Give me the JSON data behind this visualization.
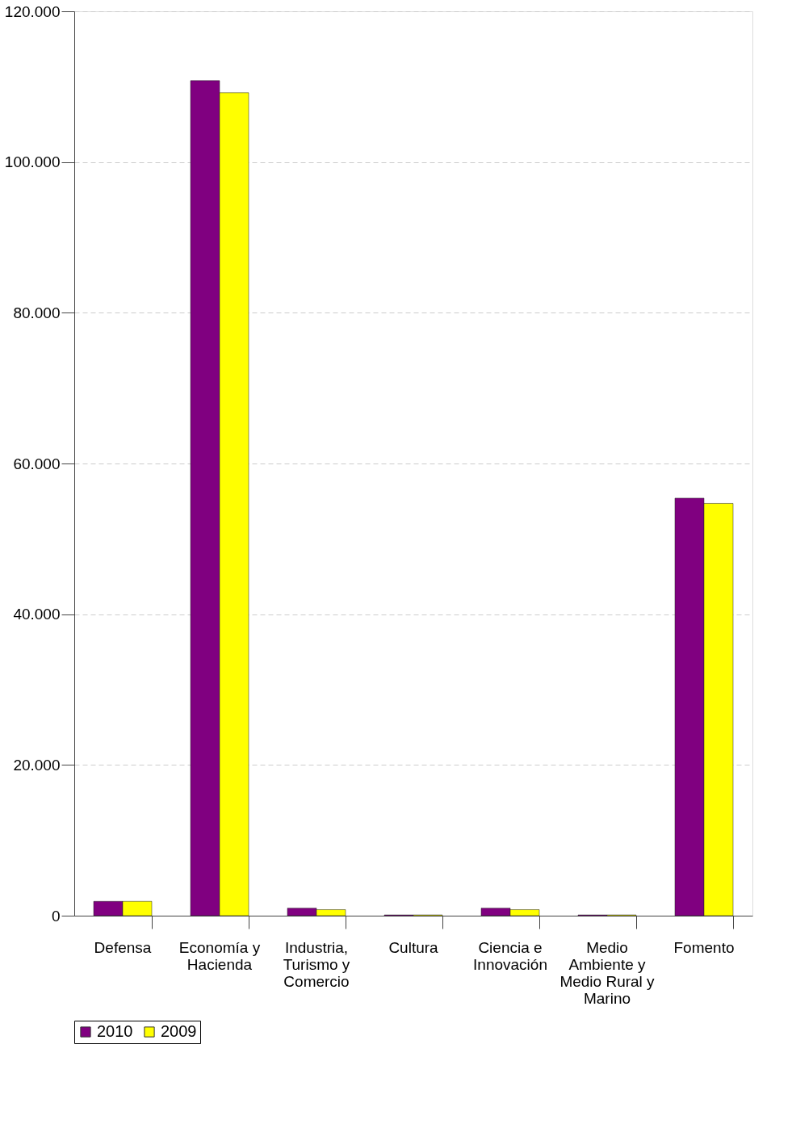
{
  "chart_data": {
    "type": "bar",
    "categories": [
      "Defensa",
      "Economía y Hacienda",
      "Industria, Turismo y Comercio",
      "Cultura",
      "Ciencia e Innovación",
      "Medio Ambiente y Medio Rural y Marino",
      "Fomento"
    ],
    "series": [
      {
        "name": "2010",
        "color": "#800080",
        "values": [
          1900,
          110800,
          1000,
          100,
          1000,
          100,
          55400
        ]
      },
      {
        "name": "2009",
        "color": "#ffff00",
        "values": [
          1900,
          109200,
          800,
          100,
          800,
          100,
          54700
        ]
      }
    ],
    "ylim": [
      0,
      120000
    ],
    "yticks": [
      0,
      {
        "value": 20000,
        "label": "20.000"
      },
      {
        "value": 40000,
        "label": "40.000"
      },
      {
        "value": 60000,
        "label": "60.000"
      },
      {
        "value": 80000,
        "label": "80.000"
      },
      {
        "value": 100000,
        "label": "100.000"
      },
      {
        "value": 120000,
        "label": "120.000"
      }
    ],
    "grid": "y",
    "legend": "bottom"
  }
}
